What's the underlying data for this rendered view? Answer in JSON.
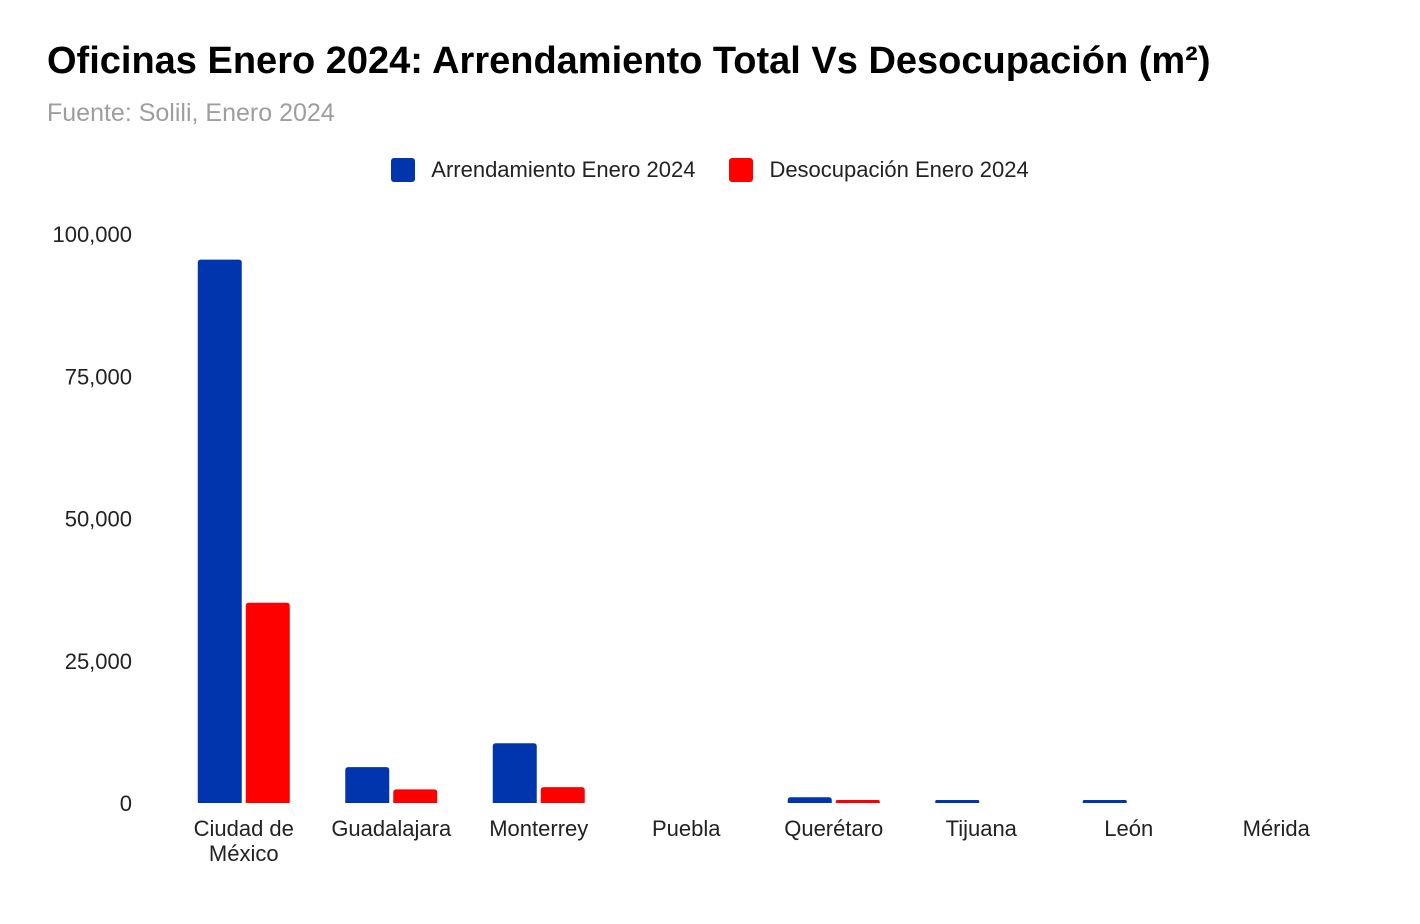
{
  "title": "Oficinas Enero 2024: Arrendamiento Total Vs Desocupación (m²)",
  "subtitle": "Fuente: Solili, Enero 2024",
  "colors": {
    "series1": "#0035AD",
    "series2": "#FF0000"
  },
  "chart_data": {
    "type": "bar",
    "title": "Oficinas Enero 2024: Arrendamiento Total Vs Desocupación (m²)",
    "subtitle": "Fuente: Solili, Enero 2024",
    "categories": [
      [
        "Ciudad de",
        "México"
      ],
      [
        "Guadalajara"
      ],
      [
        "Monterrey"
      ],
      [
        "Puebla"
      ],
      [
        "Querétaro"
      ],
      [
        "Tijuana"
      ],
      [
        "León"
      ],
      [
        "Mérida"
      ]
    ],
    "series": [
      {
        "name": "Arrendamiento Enero 2024",
        "color": "#0035AD",
        "values": [
          95500,
          6300,
          10500,
          0,
          1000,
          300,
          300,
          0
        ]
      },
      {
        "name": "Desocupación Enero 2024",
        "color": "#FF0000",
        "values": [
          35200,
          2400,
          2800,
          0,
          400,
          0,
          0,
          0
        ]
      }
    ],
    "ylim": [
      0,
      100000
    ],
    "yticks": [
      0,
      25000,
      50000,
      75000,
      100000
    ],
    "ytick_labels": [
      "0",
      "25,000",
      "50,000",
      "75,000",
      "100,000"
    ],
    "xlabel": "",
    "ylabel": "",
    "grid": false,
    "legend_position": "top-center"
  }
}
